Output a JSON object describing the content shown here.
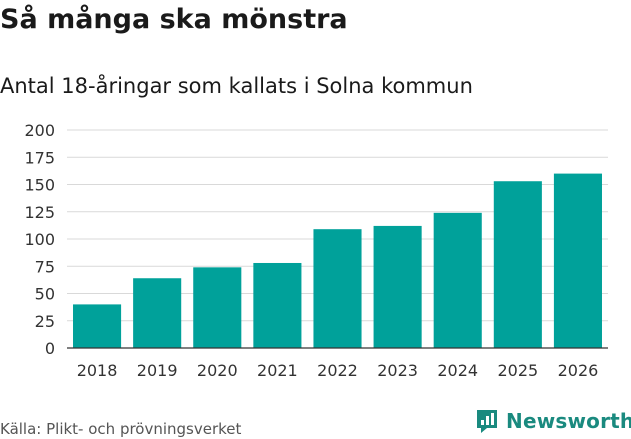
{
  "title": "Så många ska mönstra",
  "subtitle": "Antal 18-åringar som kallats i Solna kommun",
  "source": "Källa: Plikt- och prövningsverket",
  "brand": {
    "name": "Newsworthy",
    "icon": "newsworthy-logo-icon",
    "color": "#1a8a7f"
  },
  "colors": {
    "bar": "#00a19a",
    "grid": "#d9d9d9",
    "axis": "#333333",
    "tick_text": "#333333"
  },
  "chart_data": {
    "type": "bar",
    "title": "Så många ska mönstra",
    "subtitle": "Antal 18-åringar som kallats i Solna kommun",
    "xlabel": "",
    "ylabel": "",
    "categories": [
      "2018",
      "2019",
      "2020",
      "2021",
      "2022",
      "2023",
      "2024",
      "2025",
      "2026"
    ],
    "values": [
      40,
      64,
      74,
      78,
      109,
      112,
      124,
      153,
      160
    ],
    "ylim": [
      0,
      200
    ],
    "yticks": [
      0,
      25,
      50,
      75,
      100,
      125,
      150,
      175,
      200
    ],
    "grid": true,
    "legend": "none"
  }
}
